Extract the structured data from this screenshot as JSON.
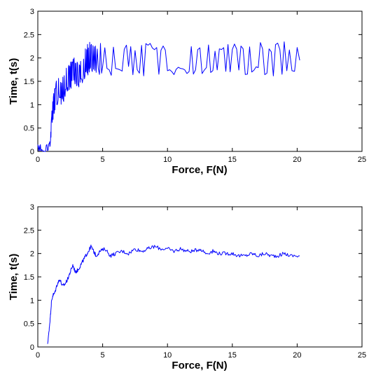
{
  "chart_data": [
    {
      "type": "line",
      "xlabel": "Force, F(N)",
      "ylabel": "Time, t(s)",
      "xlim": [
        0,
        25
      ],
      "ylim": [
        0,
        3
      ],
      "xticks": [
        "0",
        "5",
        "10",
        "15",
        "20",
        "25"
      ],
      "yticks": [
        "0",
        "0.5",
        "1",
        "1.5",
        "2",
        "2.5",
        "3"
      ],
      "grid": false,
      "color": "#0000ff",
      "series": [
        {
          "x": [
            0,
            0.3,
            0.6,
            0.9,
            1.0,
            1.1,
            1.25,
            1.4,
            1.6,
            1.8,
            2.0,
            2.2,
            2.4,
            2.6,
            2.8,
            3.0,
            3.2,
            3.4,
            3.6,
            3.8,
            4.0,
            4.2,
            4.5,
            5.0,
            6,
            7,
            8,
            9,
            10,
            11,
            12,
            13,
            14,
            15,
            16,
            17,
            18,
            19,
            20.2
          ],
          "y": [
            0.05,
            0.1,
            0.05,
            0.1,
            0.35,
            0.75,
            1.1,
            1.2,
            1.4,
            1.3,
            1.35,
            1.55,
            1.6,
            1.65,
            1.75,
            1.7,
            1.65,
            1.75,
            1.85,
            1.95,
            2.0,
            2.0,
            1.95,
            2.0,
            1.95,
            2.0,
            1.95,
            2.0,
            1.95,
            2.0,
            1.95,
            2.0,
            1.95,
            2.0,
            1.95,
            2.0,
            1.95,
            2.0,
            1.95
          ],
          "noise": [
            0.1,
            0.1,
            0.1,
            0.1,
            0.12,
            0.2,
            0.3,
            0.3,
            0.3,
            0.3,
            0.3,
            0.3,
            0.3,
            0.3,
            0.3,
            0.3,
            0.3,
            0.3,
            0.3,
            0.35,
            0.35,
            0.35,
            0.35,
            0.35,
            0.35,
            0.35,
            0.35,
            0.35,
            0.35,
            0.35,
            0.35,
            0.35,
            0.35,
            0.35,
            0.35,
            0.35,
            0.35,
            0.35,
            0.35
          ]
        }
      ]
    },
    {
      "type": "line",
      "xlabel": "Force, F(N)",
      "ylabel": "Time, t(s)",
      "xlim": [
        0,
        25
      ],
      "ylim": [
        0,
        3
      ],
      "xticks": [
        "0",
        "5",
        "10",
        "15",
        "20",
        "25"
      ],
      "yticks": [
        "0",
        "0.5",
        "1",
        "1.5",
        "2",
        "2.5",
        "3"
      ],
      "grid": false,
      "color": "#0000ff",
      "series": [
        {
          "x": [
            0.75,
            0.85,
            0.95,
            1.05,
            1.15,
            1.3,
            1.5,
            1.7,
            1.9,
            2.1,
            2.3,
            2.5,
            2.7,
            2.9,
            3.1,
            3.3,
            3.5,
            3.7,
            3.9,
            4.1,
            4.3,
            4.5,
            4.8,
            5.2,
            5.6,
            6.0,
            6.5,
            7.0,
            7.5,
            8.0,
            8.5,
            9.0,
            9.5,
            10.0,
            10.5,
            11.0,
            11.5,
            12.0,
            12.5,
            13.0,
            13.5,
            14.0,
            14.5,
            15.0,
            15.5,
            16.0,
            16.5,
            17.0,
            17.5,
            18.0,
            18.5,
            19.0,
            19.5,
            20.2
          ],
          "y": [
            0.05,
            0.3,
            0.6,
            0.95,
            1.1,
            1.15,
            1.35,
            1.45,
            1.3,
            1.35,
            1.45,
            1.6,
            1.75,
            1.6,
            1.65,
            1.75,
            1.85,
            1.95,
            2.05,
            2.15,
            2.05,
            1.95,
            2.05,
            2.1,
            1.95,
            2.0,
            2.05,
            2.0,
            2.1,
            2.05,
            2.1,
            2.15,
            2.1,
            2.1,
            2.05,
            2.1,
            2.05,
            2.05,
            2.1,
            2.0,
            2.05,
            2.0,
            2.0,
            2.0,
            1.95,
            1.95,
            2.0,
            1.95,
            2.0,
            1.95,
            1.95,
            2.0,
            1.95,
            1.95
          ],
          "noise": [
            0.02,
            0.03,
            0.03,
            0.04,
            0.04,
            0.04,
            0.04,
            0.04,
            0.04,
            0.04,
            0.04,
            0.04,
            0.04,
            0.04,
            0.04,
            0.04,
            0.04,
            0.04,
            0.04,
            0.04,
            0.04,
            0.04,
            0.04,
            0.04,
            0.04,
            0.04,
            0.04,
            0.04,
            0.04,
            0.04,
            0.04,
            0.04,
            0.04,
            0.04,
            0.04,
            0.04,
            0.04,
            0.04,
            0.04,
            0.04,
            0.04,
            0.04,
            0.04,
            0.04,
            0.04,
            0.04,
            0.04,
            0.04,
            0.04,
            0.04,
            0.04,
            0.04,
            0.04,
            0.04
          ]
        }
      ]
    }
  ]
}
